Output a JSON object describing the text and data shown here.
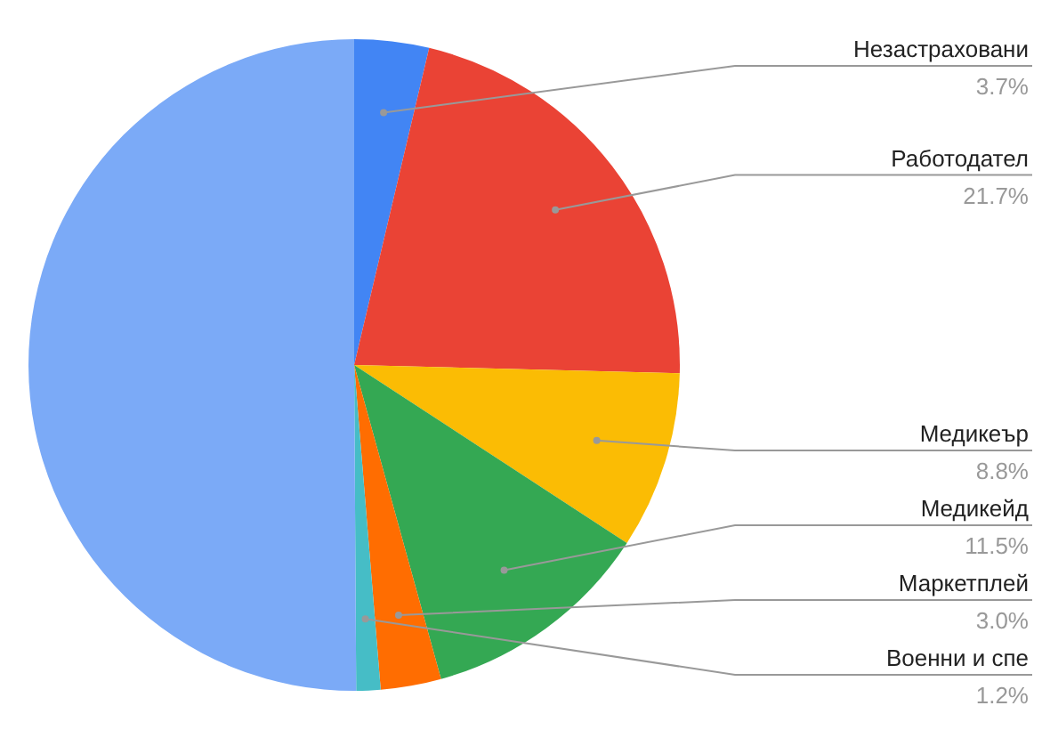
{
  "chart_data": {
    "type": "pie",
    "categories": [
      "Незастраховани",
      "Работодател",
      "Медикеър",
      "Медикейд",
      "Маркетплей",
      "Военни и спе",
      null
    ],
    "values": [
      3.7,
      21.7,
      8.8,
      11.5,
      3.0,
      1.2,
      50.1
    ],
    "value_labels": [
      "3.7%",
      "21.7%",
      "8.8%",
      "11.5%",
      "3.0%",
      "1.2%",
      null
    ],
    "colors": [
      "#4285f4",
      "#ea4335",
      "#fbbc04",
      "#34a853",
      "#ff6d01",
      "#46bdc6",
      "#7baaf7"
    ],
    "legend": false
  }
}
